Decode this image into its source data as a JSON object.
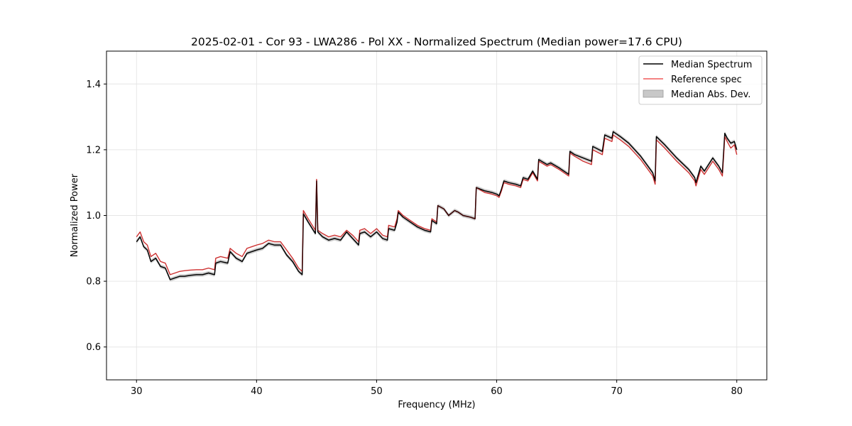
{
  "chart_data": {
    "type": "line",
    "title": "2025-02-01 - Cor 93 - LWA286 - Pol XX - Normalized Spectrum (Median power=17.6 CPU)",
    "xlabel": "Frequency (MHz)",
    "ylabel": "Normalized Power",
    "xlim": [
      27.5,
      82.5
    ],
    "ylim": [
      0.5,
      1.5
    ],
    "xticks": [
      30,
      40,
      50,
      60,
      70,
      80
    ],
    "yticks": [
      0.6,
      0.8,
      1.0,
      1.2,
      1.4
    ],
    "xtick_labels": [
      "30",
      "40",
      "50",
      "60",
      "70",
      "80"
    ],
    "ytick_labels": [
      "0.6",
      "0.8",
      "1.0",
      "1.2",
      "1.4"
    ],
    "grid": true,
    "legend_position": "top-right",
    "legend": [
      "Median Spectrum",
      "Reference spec",
      "Median Abs. Dev."
    ],
    "colors": {
      "median": "#000000",
      "reference": "#f05a5a",
      "mad": "#c8c8c8",
      "axes": "#000000",
      "grid": "#e6e6e6"
    },
    "series": [
      {
        "name": "Median Spectrum",
        "x": [
          30.0,
          30.3,
          30.6,
          30.9,
          31.2,
          31.6,
          32.0,
          32.4,
          32.8,
          33.2,
          33.6,
          34.0,
          34.5,
          35.0,
          35.5,
          36.0,
          36.5,
          36.6,
          37.0,
          37.6,
          37.8,
          38.3,
          38.8,
          39.2,
          39.6,
          40.0,
          40.5,
          41.0,
          41.5,
          42.0,
          42.5,
          43.0,
          43.5,
          43.8,
          43.9,
          44.3,
          44.9,
          45.0,
          45.1,
          45.5,
          46.0,
          46.5,
          47.0,
          47.5,
          48.0,
          48.5,
          48.6,
          49.0,
          49.5,
          50.0,
          50.5,
          50.9,
          51.0,
          51.5,
          51.7,
          51.8,
          52.2,
          52.8,
          53.4,
          54.0,
          54.5,
          54.6,
          55.0,
          55.1,
          55.6,
          56.0,
          56.5,
          56.8,
          57.2,
          57.8,
          58.2,
          58.3,
          59.0,
          59.6,
          60.0,
          60.2,
          60.4,
          60.6,
          61.0,
          61.6,
          62.0,
          62.2,
          62.6,
          63.0,
          63.4,
          63.5,
          64.2,
          64.5,
          65.2,
          66.0,
          66.1,
          66.5,
          67.2,
          67.9,
          68.0,
          68.8,
          69.0,
          69.6,
          69.7,
          70.3,
          71.0,
          72.0,
          73.0,
          73.2,
          73.3,
          74.0,
          75.0,
          76.0,
          76.5,
          76.6,
          77.0,
          77.3,
          78.0,
          78.5,
          78.8,
          79.0,
          79.2,
          79.5,
          79.8,
          80.0
        ],
        "values": [
          0.92,
          0.935,
          0.905,
          0.895,
          0.86,
          0.87,
          0.845,
          0.84,
          0.805,
          0.81,
          0.815,
          0.815,
          0.818,
          0.82,
          0.82,
          0.825,
          0.82,
          0.855,
          0.86,
          0.855,
          0.89,
          0.87,
          0.86,
          0.885,
          0.89,
          0.895,
          0.9,
          0.915,
          0.91,
          0.91,
          0.88,
          0.86,
          0.83,
          0.82,
          1.005,
          0.98,
          0.945,
          1.105,
          0.95,
          0.935,
          0.925,
          0.93,
          0.925,
          0.95,
          0.93,
          0.91,
          0.945,
          0.95,
          0.935,
          0.95,
          0.93,
          0.925,
          0.96,
          0.955,
          0.98,
          1.01,
          0.995,
          0.98,
          0.965,
          0.955,
          0.95,
          0.985,
          0.975,
          1.03,
          1.02,
          1.0,
          1.015,
          1.01,
          1.0,
          0.995,
          0.99,
          1.085,
          1.075,
          1.07,
          1.065,
          1.06,
          1.08,
          1.105,
          1.1,
          1.095,
          1.09,
          1.115,
          1.11,
          1.135,
          1.11,
          1.17,
          1.155,
          1.16,
          1.145,
          1.125,
          1.195,
          1.185,
          1.175,
          1.165,
          1.21,
          1.195,
          1.245,
          1.235,
          1.255,
          1.24,
          1.22,
          1.18,
          1.13,
          1.105,
          1.24,
          1.215,
          1.175,
          1.14,
          1.115,
          1.1,
          1.15,
          1.135,
          1.175,
          1.15,
          1.13,
          1.25,
          1.235,
          1.22,
          1.225,
          1.2
        ]
      },
      {
        "name": "Reference spec",
        "x": [
          30.0,
          30.3,
          30.6,
          30.9,
          31.2,
          31.6,
          32.0,
          32.4,
          32.8,
          33.2,
          33.6,
          34.0,
          34.5,
          35.0,
          35.5,
          36.0,
          36.5,
          36.6,
          37.0,
          37.6,
          37.8,
          38.3,
          38.8,
          39.2,
          39.6,
          40.0,
          40.5,
          41.0,
          41.5,
          42.0,
          42.5,
          43.0,
          43.5,
          43.8,
          43.9,
          44.3,
          44.9,
          45.0,
          45.1,
          45.5,
          46.0,
          46.5,
          47.0,
          47.5,
          48.0,
          48.5,
          48.6,
          49.0,
          49.5,
          50.0,
          50.5,
          50.9,
          51.0,
          51.5,
          51.7,
          51.8,
          52.2,
          52.8,
          53.4,
          54.0,
          54.5,
          54.6,
          55.0,
          55.1,
          55.6,
          56.0,
          56.5,
          56.8,
          57.2,
          57.8,
          58.2,
          58.3,
          59.0,
          59.6,
          60.0,
          60.2,
          60.4,
          60.6,
          61.0,
          61.6,
          62.0,
          62.2,
          62.6,
          63.0,
          63.4,
          63.5,
          64.2,
          64.5,
          65.2,
          66.0,
          66.1,
          66.5,
          67.2,
          67.9,
          68.0,
          68.8,
          69.0,
          69.6,
          69.7,
          70.3,
          71.0,
          72.0,
          73.0,
          73.2,
          73.3,
          74.0,
          75.0,
          76.0,
          76.5,
          76.6,
          77.0,
          77.3,
          78.0,
          78.5,
          78.8,
          79.0,
          79.2,
          79.5,
          79.8,
          80.0
        ],
        "values": [
          0.935,
          0.95,
          0.92,
          0.91,
          0.875,
          0.885,
          0.86,
          0.855,
          0.82,
          0.825,
          0.83,
          0.832,
          0.834,
          0.835,
          0.835,
          0.84,
          0.835,
          0.87,
          0.875,
          0.87,
          0.9,
          0.885,
          0.875,
          0.9,
          0.905,
          0.91,
          0.915,
          0.925,
          0.92,
          0.92,
          0.895,
          0.87,
          0.84,
          0.83,
          1.015,
          0.99,
          0.955,
          1.11,
          0.955,
          0.945,
          0.935,
          0.94,
          0.935,
          0.955,
          0.94,
          0.92,
          0.955,
          0.96,
          0.945,
          0.96,
          0.94,
          0.935,
          0.97,
          0.965,
          0.99,
          1.015,
          1.0,
          0.985,
          0.97,
          0.96,
          0.955,
          0.99,
          0.98,
          1.03,
          1.02,
          1.0,
          1.015,
          1.01,
          1.0,
          0.995,
          0.99,
          1.085,
          1.07,
          1.065,
          1.06,
          1.055,
          1.075,
          1.1,
          1.095,
          1.09,
          1.085,
          1.11,
          1.105,
          1.13,
          1.105,
          1.165,
          1.15,
          1.155,
          1.14,
          1.12,
          1.19,
          1.18,
          1.165,
          1.155,
          1.2,
          1.185,
          1.235,
          1.225,
          1.245,
          1.23,
          1.21,
          1.17,
          1.12,
          1.095,
          1.23,
          1.205,
          1.165,
          1.13,
          1.105,
          1.09,
          1.14,
          1.125,
          1.165,
          1.14,
          1.12,
          1.24,
          1.225,
          1.205,
          1.215,
          1.185
        ]
      }
    ],
    "mad_band_halfwidth": 0.006
  }
}
